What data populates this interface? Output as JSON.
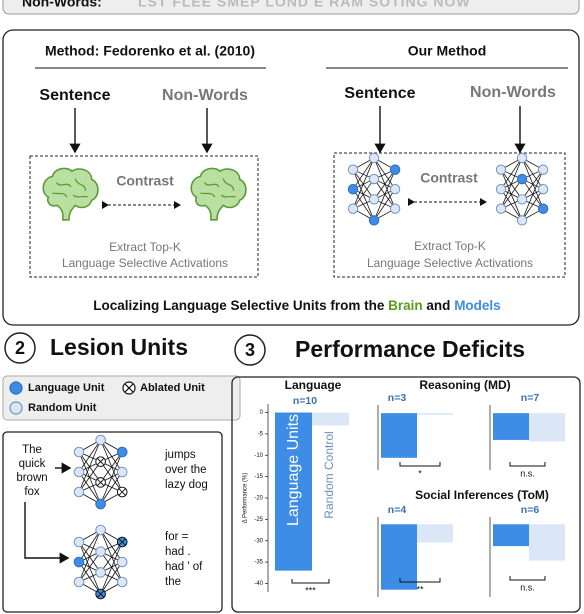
{
  "header": {
    "label": "Non-Words:",
    "text": "LST FLEE SMEP LOND E RAM SOTING NOW"
  },
  "panel1": {
    "left": {
      "title": "Method: Fedorenko et al. (2010)",
      "sentence": "Sentence",
      "nonwords": "Non-Words",
      "contrast": "Contrast",
      "extract": [
        "Extract Top-K",
        "Language Selective Activations"
      ]
    },
    "right": {
      "title": "Our Method",
      "sentence": "Sentence",
      "nonwords": "Non-Words",
      "contrast": "Contrast",
      "extract": [
        "Extract Top-K",
        "Language Selective Activations"
      ]
    },
    "caption": [
      "Localizing Language Selective Units from the",
      "Brain",
      "and",
      "Models"
    ]
  },
  "panel2": {
    "number": "2",
    "title": "Lesion Units",
    "legend": [
      "Language Unit",
      "Ablated Unit",
      "Random Unit"
    ],
    "input": [
      "The",
      "quick",
      "brown",
      "fox"
    ],
    "output_1": [
      "jumps",
      "over the",
      "lazy dog"
    ],
    "output_2": [
      "for =",
      "had .",
      "had ' of",
      "the"
    ]
  },
  "panel3": {
    "number": "3",
    "title": "Performance Deficits",
    "y_label": "Δ Performance (%)",
    "groups": [
      "Language",
      "Reasoning (MD)",
      "Social Inferences (ToM)"
    ],
    "bar_labels": [
      "Language Units",
      "Random Control"
    ],
    "colors": [
      "#3d8de6",
      "#dbe7f6"
    ],
    "charts": [
      {
        "n": "n=10",
        "values": [
          -37,
          -3
        ],
        "ylim": [
          -42,
          2
        ],
        "yticks": [
          0,
          -5,
          -10,
          -15,
          -20,
          -25,
          -30,
          -35,
          -40
        ],
        "significance": "***"
      },
      {
        "n": "n=3",
        "values": [
          -5.5,
          -0.2
        ],
        "ylim": [
          -7,
          1
        ],
        "significance": "*"
      },
      {
        "n": "n=7",
        "values": [
          -3.3,
          -3.5
        ],
        "ylim": [
          -7,
          1
        ],
        "significance": "n.s."
      },
      {
        "n": "n=4",
        "values": [
          -9,
          -2.5
        ],
        "ylim": [
          -10,
          1
        ],
        "significance": "**"
      },
      {
        "n": "n=6",
        "values": [
          -3,
          -5
        ],
        "ylim": [
          -10,
          1
        ],
        "significance": "n.s."
      }
    ]
  }
}
